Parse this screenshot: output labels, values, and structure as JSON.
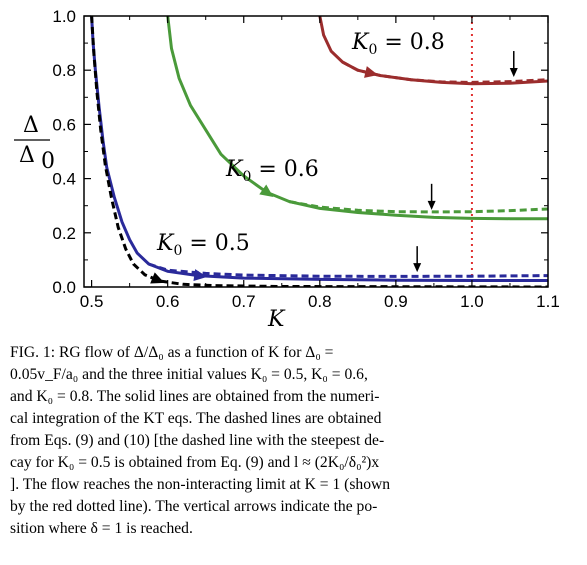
{
  "chart_data": {
    "type": "line",
    "xlabel": "K",
    "ylabel": "Δ/Δ0",
    "xlim": [
      0.49,
      1.1
    ],
    "ylim": [
      0.0,
      1.0
    ],
    "xticks": [
      "0.5",
      "0.6",
      "0.7",
      "0.8",
      "0.9",
      "1.0",
      "1.1"
    ],
    "yticks": [
      "0.0",
      "0.2",
      "0.4",
      "0.6",
      "0.8",
      "1.0"
    ],
    "reference_line": {
      "x": 1.0,
      "color": "#e03030",
      "style": "dotted"
    },
    "series": [
      {
        "name": "K0 = 0.8",
        "color": "#9b2d2d",
        "solid": [
          [
            0.8,
            1.0
          ],
          [
            0.805,
            0.93
          ],
          [
            0.815,
            0.87
          ],
          [
            0.83,
            0.83
          ],
          [
            0.85,
            0.8
          ],
          [
            0.88,
            0.78
          ],
          [
            0.92,
            0.765
          ],
          [
            0.96,
            0.755
          ],
          [
            1.0,
            0.75
          ],
          [
            1.05,
            0.752
          ],
          [
            1.1,
            0.76
          ]
        ],
        "dashed": [
          [
            0.83,
            0.83
          ],
          [
            0.85,
            0.8
          ],
          [
            0.88,
            0.78
          ],
          [
            0.92,
            0.765
          ],
          [
            0.96,
            0.757
          ],
          [
            1.0,
            0.755
          ],
          [
            1.05,
            0.758
          ],
          [
            1.1,
            0.765
          ]
        ],
        "arrow_at": 0.86,
        "delta_arrow_x": 1.055,
        "delta_arrow_y": 0.76
      },
      {
        "name": "K0 = 0.6",
        "color": "#4a9a3a",
        "solid": [
          [
            0.6,
            1.0
          ],
          [
            0.605,
            0.88
          ],
          [
            0.615,
            0.77
          ],
          [
            0.63,
            0.67
          ],
          [
            0.65,
            0.58
          ],
          [
            0.67,
            0.49
          ],
          [
            0.7,
            0.41
          ],
          [
            0.73,
            0.35
          ],
          [
            0.76,
            0.315
          ],
          [
            0.8,
            0.29
          ],
          [
            0.85,
            0.275
          ],
          [
            0.9,
            0.265
          ],
          [
            0.95,
            0.257
          ],
          [
            1.0,
            0.253
          ],
          [
            1.05,
            0.252
          ],
          [
            1.1,
            0.252
          ]
        ],
        "dashed": [
          [
            0.76,
            0.315
          ],
          [
            0.8,
            0.295
          ],
          [
            0.85,
            0.283
          ],
          [
            0.9,
            0.278
          ],
          [
            0.95,
            0.277
          ],
          [
            1.0,
            0.278
          ],
          [
            1.05,
            0.282
          ],
          [
            1.1,
            0.288
          ]
        ],
        "arrow_at": 0.725,
        "delta_arrow_x": 0.947,
        "delta_arrow_y": 0.27
      },
      {
        "name": "K0 = 0.5",
        "color": "#2a2a9a",
        "solid": [
          [
            0.5,
            1.0
          ],
          [
            0.502,
            0.9
          ],
          [
            0.505,
            0.8
          ],
          [
            0.51,
            0.66
          ],
          [
            0.515,
            0.54
          ],
          [
            0.52,
            0.44
          ],
          [
            0.53,
            0.33
          ],
          [
            0.54,
            0.24
          ],
          [
            0.55,
            0.175
          ],
          [
            0.56,
            0.125
          ],
          [
            0.575,
            0.085
          ],
          [
            0.6,
            0.058
          ],
          [
            0.64,
            0.042
          ],
          [
            0.7,
            0.033
          ],
          [
            0.8,
            0.028
          ],
          [
            0.9,
            0.025
          ],
          [
            1.0,
            0.024
          ],
          [
            1.1,
            0.024
          ]
        ],
        "dashed": [
          [
            0.575,
            0.085
          ],
          [
            0.6,
            0.062
          ],
          [
            0.65,
            0.05
          ],
          [
            0.7,
            0.044
          ],
          [
            0.8,
            0.04
          ],
          [
            0.9,
            0.039
          ],
          [
            1.0,
            0.04
          ],
          [
            1.1,
            0.042
          ]
        ],
        "arrow_at": 0.635,
        "delta_arrow_x": 0.928,
        "delta_arrow_y": 0.04
      },
      {
        "name": "steepest",
        "color": "#000000",
        "dashed": [
          [
            0.5,
            1.0
          ],
          [
            0.503,
            0.86
          ],
          [
            0.507,
            0.72
          ],
          [
            0.512,
            0.58
          ],
          [
            0.518,
            0.45
          ],
          [
            0.526,
            0.33
          ],
          [
            0.535,
            0.22
          ],
          [
            0.545,
            0.14
          ],
          [
            0.555,
            0.085
          ],
          [
            0.57,
            0.045
          ],
          [
            0.59,
            0.022
          ],
          [
            0.62,
            0.01
          ],
          [
            0.66,
            0.005
          ],
          [
            0.75,
            0.002
          ],
          [
            0.9,
            0.001
          ],
          [
            1.1,
            0.0
          ]
        ],
        "arrow_at": 0.58
      }
    ],
    "labels": [
      {
        "text": "K",
        "sub": "0",
        "rest": " = 0.8"
      },
      {
        "text": "K",
        "sub": "0",
        "rest": " = 0.6"
      },
      {
        "text": "K",
        "sub": "0",
        "rest": " = 0.5"
      }
    ]
  },
  "caption": {
    "lines": [
      "FIG. 1:  RG flow of Δ/Δ₀ as a function of K for Δ₀ =",
      "0.05v_F/a₀ and the three initial values K₀ = 0.5, K₀ = 0.6,",
      "and K₀ = 0.8. The solid lines are obtained from the numeri-",
      "cal integration of the KT eqs. The dashed lines are obtained",
      "from Eqs. (9) and (10) [the dashed line with the steepest de-",
      "cay for K₀ = 0.5 is obtained from Eq. (9) and l ≈ (2K₀/δ₀²)x",
      "]. The flow reaches the non-interacting limit at K = 1 (shown",
      "by the red dotted line). The vertical arrows indicate the po-",
      "sition where δ = 1 is reached."
    ]
  }
}
